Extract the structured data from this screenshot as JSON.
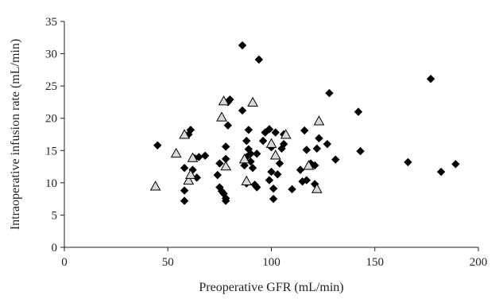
{
  "chart_data": {
    "type": "scatter",
    "title": "",
    "xlabel": "Preoperative GFR (mL/min)",
    "ylabel": "Intraoperative infusion rate (mL/min)",
    "xlim": [
      0,
      200
    ],
    "ylim": [
      0,
      35
    ],
    "x_ticks": [
      0,
      50,
      100,
      150,
      200
    ],
    "y_ticks": [
      0,
      5,
      10,
      15,
      20,
      25,
      30,
      35
    ],
    "grid": false,
    "legend": "none",
    "series": [
      {
        "marker": "diamond",
        "color": "#000000",
        "points": [
          [
            45,
            15.8
          ],
          [
            58,
            12.3
          ],
          [
            58,
            8.8
          ],
          [
            58,
            7.2
          ],
          [
            60,
            17.5
          ],
          [
            61,
            18.2
          ],
          [
            62,
            12.0
          ],
          [
            63,
            13.8
          ],
          [
            64,
            10.8
          ],
          [
            65,
            14.0
          ],
          [
            68,
            14.2
          ],
          [
            74,
            11.2
          ],
          [
            75,
            13.0
          ],
          [
            75,
            9.3
          ],
          [
            76,
            8.7
          ],
          [
            77,
            8.3
          ],
          [
            78,
            7.6
          ],
          [
            78,
            7.2
          ],
          [
            78,
            13.7
          ],
          [
            78,
            15.6
          ],
          [
            79,
            18.9
          ],
          [
            79,
            22.5
          ],
          [
            80,
            22.9
          ],
          [
            86,
            31.3
          ],
          [
            86,
            21.2
          ],
          [
            87,
            12.7
          ],
          [
            88,
            16.5
          ],
          [
            88,
            9.9
          ],
          [
            88,
            14.0
          ],
          [
            89,
            15.2
          ],
          [
            89,
            18.2
          ],
          [
            90,
            13.3
          ],
          [
            90,
            14.5
          ],
          [
            91,
            12.3
          ],
          [
            92,
            9.7
          ],
          [
            93,
            9.3
          ],
          [
            93,
            14.5
          ],
          [
            94,
            29.1
          ],
          [
            96,
            16.5
          ],
          [
            97,
            17.8
          ],
          [
            99,
            18.3
          ],
          [
            99,
            10.4
          ],
          [
            100,
            15.5
          ],
          [
            100,
            11.7
          ],
          [
            101,
            9.1
          ],
          [
            101,
            7.5
          ],
          [
            102,
            17.8
          ],
          [
            103,
            11.3
          ],
          [
            104,
            13.0
          ],
          [
            105,
            15.3
          ],
          [
            106,
            17.5
          ],
          [
            106,
            16.0
          ],
          [
            110,
            9.0
          ],
          [
            114,
            12.0
          ],
          [
            115,
            10.2
          ],
          [
            116,
            18.1
          ],
          [
            117,
            15.1
          ],
          [
            117,
            10.4
          ],
          [
            119,
            13.0
          ],
          [
            121,
            9.8
          ],
          [
            121,
            12.7
          ],
          [
            122,
            15.3
          ],
          [
            123,
            16.9
          ],
          [
            127,
            16.0
          ],
          [
            128,
            23.9
          ],
          [
            131,
            13.6
          ],
          [
            142,
            21.0
          ],
          [
            143,
            14.9
          ],
          [
            166,
            13.2
          ],
          [
            177,
            26.1
          ],
          [
            182,
            11.7
          ],
          [
            189,
            12.9
          ]
        ]
      },
      {
        "marker": "triangle",
        "color": "#d9d9d9",
        "points": [
          [
            44,
            9.4
          ],
          [
            54,
            14.5
          ],
          [
            58,
            17.4
          ],
          [
            60,
            10.3
          ],
          [
            61,
            11.2
          ],
          [
            62,
            13.8
          ],
          [
            76,
            20.1
          ],
          [
            77,
            22.6
          ],
          [
            78,
            12.5
          ],
          [
            87,
            13.6
          ],
          [
            88,
            10.2
          ],
          [
            91,
            22.4
          ],
          [
            100,
            16.0
          ],
          [
            102,
            14.2
          ],
          [
            107,
            17.4
          ],
          [
            118,
            12.6
          ],
          [
            122,
            9.0
          ],
          [
            123,
            19.5
          ]
        ]
      }
    ]
  }
}
